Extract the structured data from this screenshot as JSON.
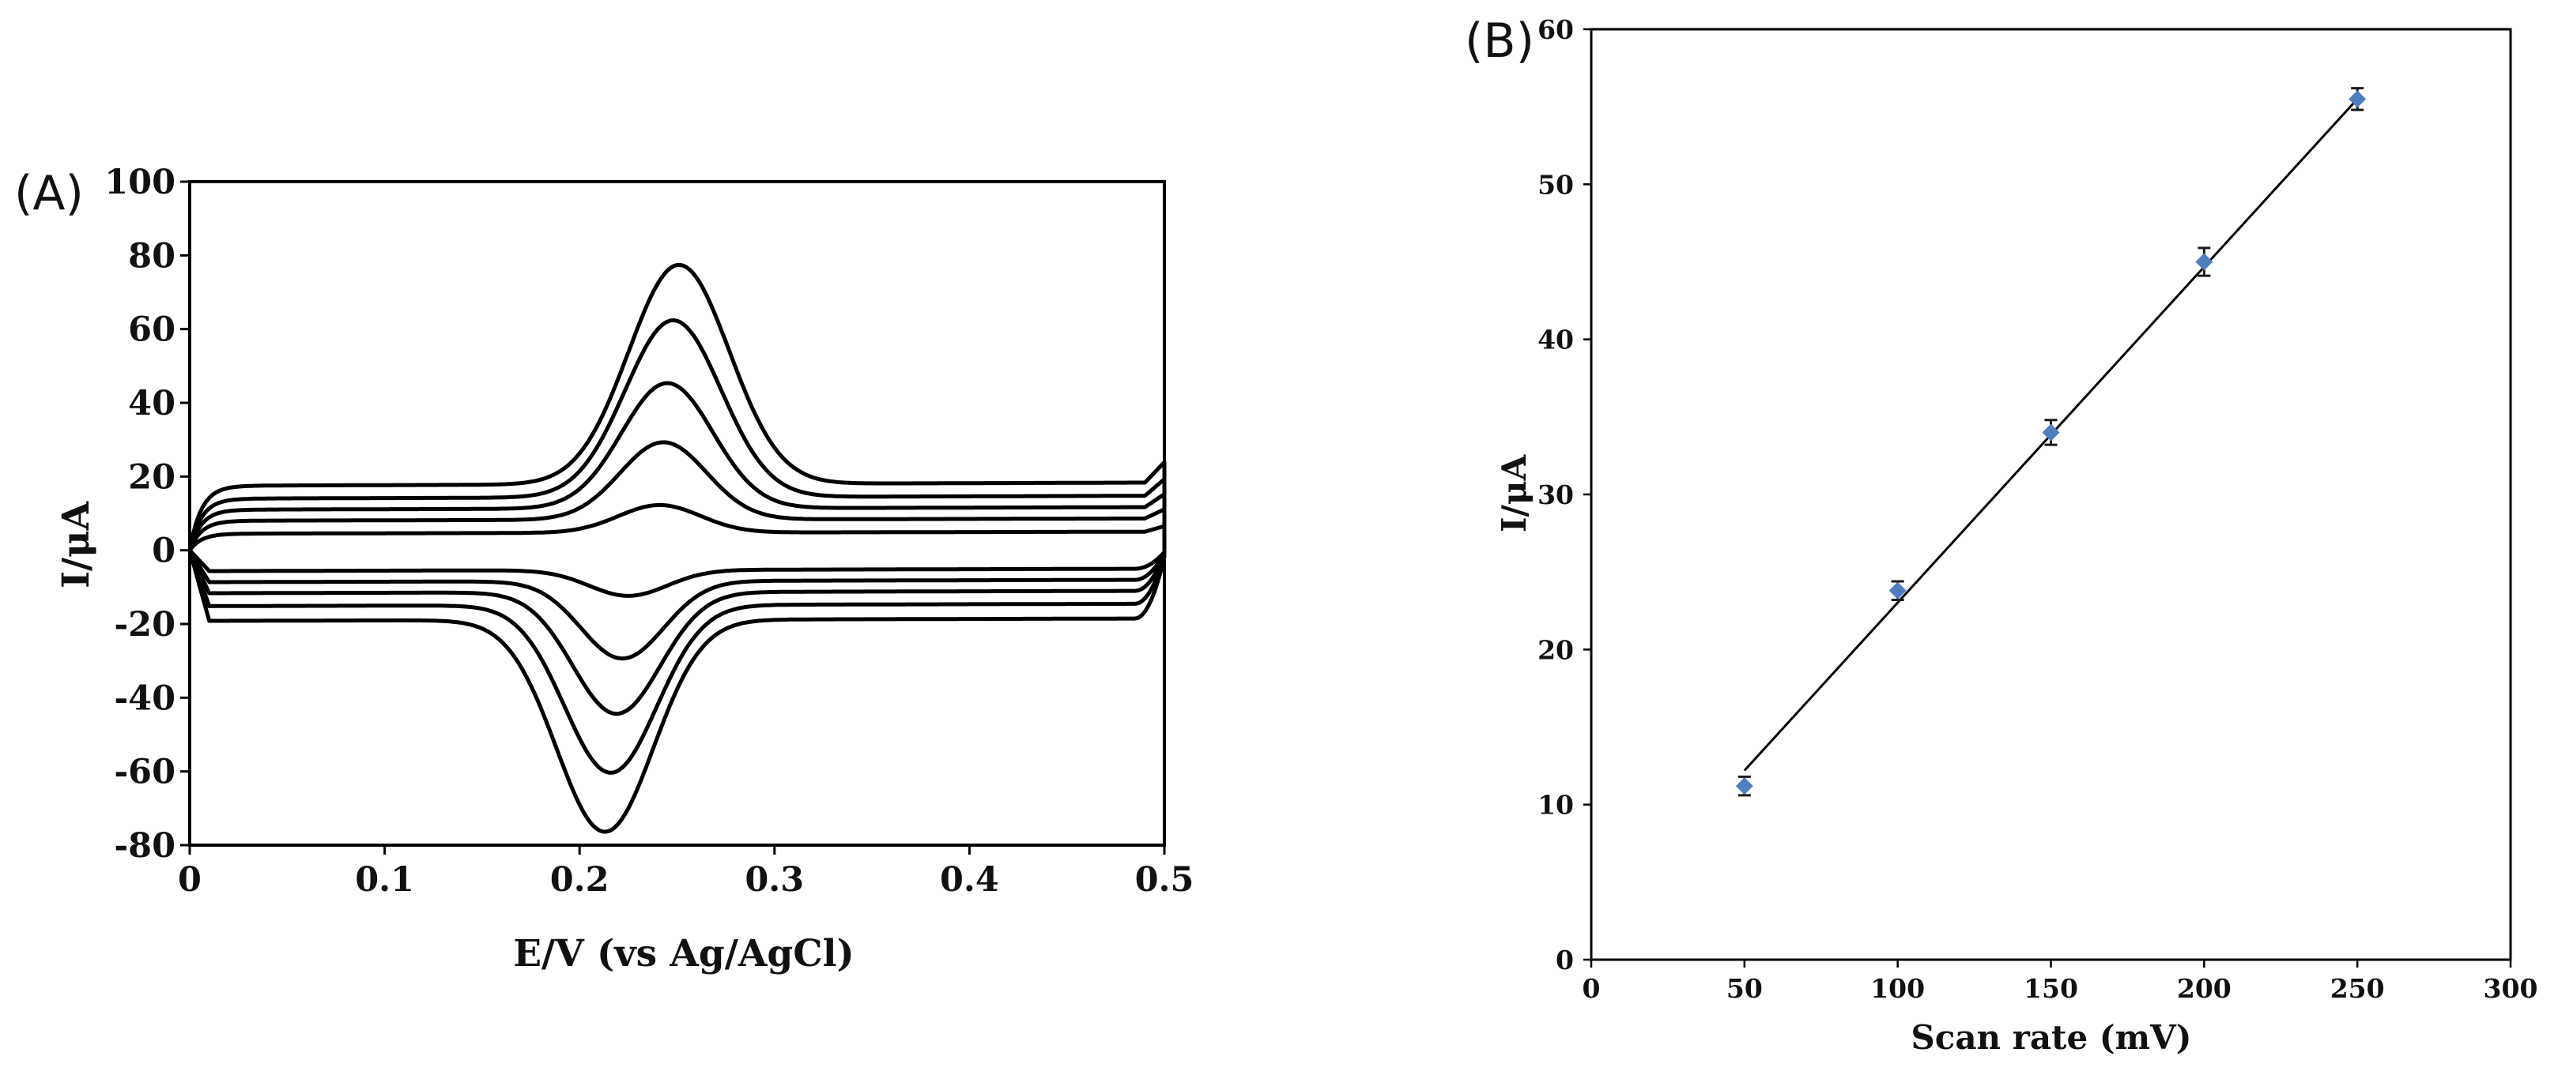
{
  "chart_data": [
    {
      "panel_label": "(A)",
      "type": "line",
      "xlabel": "E/V (vs Ag/AgCl)",
      "ylabel": "I/μA",
      "xlim": [
        0,
        0.5
      ],
      "ylim": [
        -80,
        100
      ],
      "x_ticks": [
        "0",
        "0.1",
        "0.2",
        "0.3",
        "0.4",
        "0.5"
      ],
      "y_ticks": [
        "100",
        "80",
        "60",
        "40",
        "20",
        "0",
        "-20",
        "-40",
        "-60",
        "-80"
      ],
      "grid": false,
      "legend": "none",
      "curve_color": "#000000",
      "series": [
        {
          "baseline_anodic": 4.5,
          "baseline_cathodic": -5,
          "anodic_peak": {
            "E": 0.241,
            "I": 12
          },
          "cathodic_peak": {
            "E": 0.225,
            "I": -12
          }
        },
        {
          "baseline_anodic": 8,
          "baseline_cathodic": -8,
          "anodic_peak": {
            "E": 0.243,
            "I": 29
          },
          "cathodic_peak": {
            "E": 0.222,
            "I": -29
          }
        },
        {
          "baseline_anodic": 11,
          "baseline_cathodic": -11,
          "anodic_peak": {
            "E": 0.245,
            "I": 45
          },
          "cathodic_peak": {
            "E": 0.219,
            "I": -44
          }
        },
        {
          "baseline_anodic": 14,
          "baseline_cathodic": -14.5,
          "anodic_peak": {
            "E": 0.248,
            "I": 62
          },
          "cathodic_peak": {
            "E": 0.216,
            "I": -60
          }
        },
        {
          "baseline_anodic": 17.5,
          "baseline_cathodic": -18.5,
          "anodic_peak": {
            "E": 0.251,
            "I": 77
          },
          "cathodic_peak": {
            "E": 0.213,
            "I": -76
          }
        }
      ]
    },
    {
      "panel_label": "(B)",
      "type": "scatter",
      "xlabel": "Scan rate (mV)",
      "ylabel": "I/μA",
      "xlim": [
        0,
        300
      ],
      "ylim": [
        0,
        60
      ],
      "x_ticks": [
        "0",
        "50",
        "100",
        "150",
        "200",
        "250",
        "300"
      ],
      "y_ticks": [
        "60",
        "50",
        "40",
        "30",
        "20",
        "10",
        "0"
      ],
      "grid": false,
      "legend": "none",
      "marker_color": "#4f7fbf",
      "line_color": "#000000",
      "points": [
        {
          "x": 50,
          "y": 11.2,
          "err": 0.6
        },
        {
          "x": 100,
          "y": 23.8,
          "err": 0.6
        },
        {
          "x": 150,
          "y": 34,
          "err": 0.8
        },
        {
          "x": 200,
          "y": 45,
          "err": 0.9
        },
        {
          "x": 250,
          "y": 55.5,
          "err": 0.7
        }
      ],
      "fit_line": {
        "x": [
          50,
          250
        ],
        "y": [
          12.2,
          55.5
        ]
      }
    }
  ]
}
